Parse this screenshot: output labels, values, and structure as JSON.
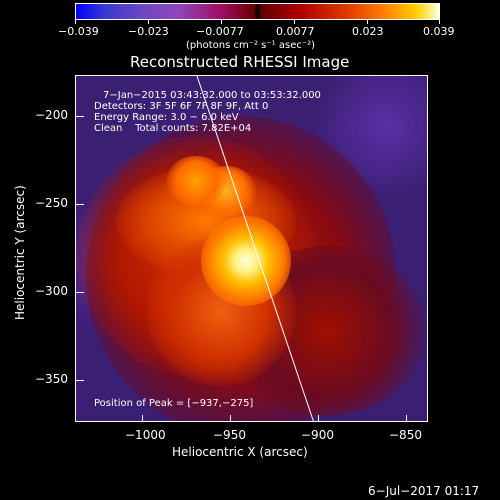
{
  "colorbar": {
    "ticks": [
      "−0.039",
      "−0.023",
      "−0.0077",
      "0.0077",
      "0.023",
      "0.039"
    ],
    "unit_label": "(photons cm⁻² s⁻¹ asec⁻²)"
  },
  "title": "Reconstructed RHESSI Image",
  "info": {
    "line1": "7−Jan−2015 03:43:32.000 to 03:53:32.000",
    "line2": "Detectors: 3F 5F 6F 7F 8F 9F, Att 0",
    "line3": "Energy Range: 3.0 − 6.0 keV",
    "line4": "Clean    Total counts: 7.82E+04"
  },
  "peak_label": "Position of Peak = [−937,−275]",
  "axes": {
    "xlabel": "Heliocentric X (arcsec)",
    "ylabel": "Heliocentric Y (arcsec)",
    "xticks": [
      "−1000",
      "−950",
      "−900",
      "−850"
    ],
    "yticks": [
      "−200",
      "−250",
      "−300",
      "−350"
    ]
  },
  "footer_date": "6−Jul−2017 01:17",
  "colors": {
    "background": "#000000",
    "foreground": "#ffffff",
    "map_low": "#3b1f72",
    "map_mid": "#d83000",
    "map_peak": "#ffffe0"
  }
}
